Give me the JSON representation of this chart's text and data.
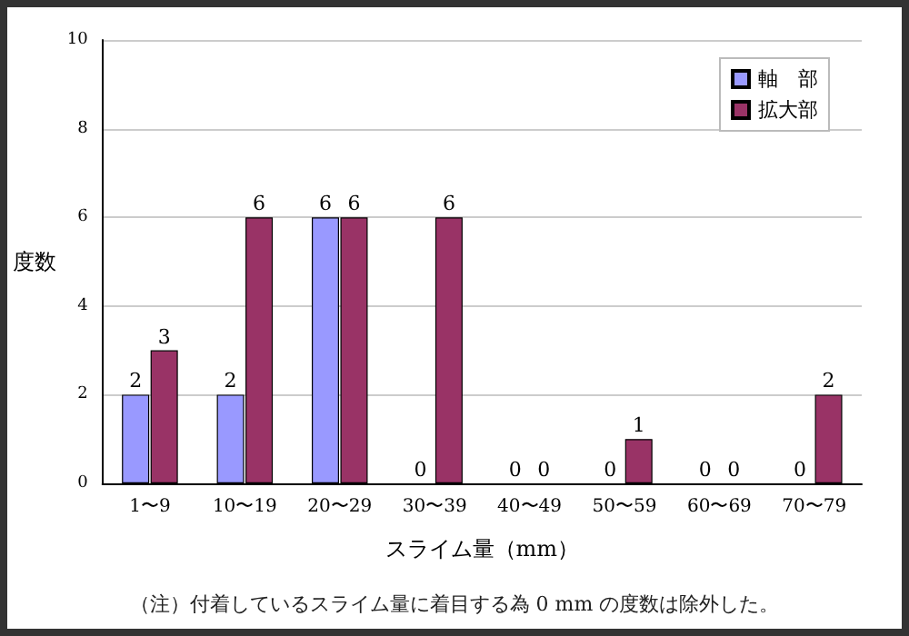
{
  "chart_data": {
    "type": "bar",
    "categories": [
      "1〜9",
      "10〜19",
      "20〜29",
      "30〜39",
      "40〜49",
      "50〜59",
      "60〜69",
      "70〜79"
    ],
    "series": [
      {
        "name": "軸　部",
        "color": "#9999ff",
        "values": [
          2,
          2,
          6,
          0,
          0,
          0,
          0,
          0
        ]
      },
      {
        "name": "拡大部",
        "color": "#993366",
        "values": [
          3,
          6,
          6,
          6,
          0,
          1,
          0,
          2
        ]
      }
    ],
    "xlabel": "スライム量（mm）",
    "ylabel": "度数",
    "annotations": [
      "（注）付着しているスライム量に着目する為 0 mm の度数は除外した。"
    ],
    "ylim": [
      0,
      10
    ],
    "yticks": [
      0,
      2,
      4,
      6,
      8,
      10
    ],
    "grid": "y",
    "legend": "top right",
    "data_labels": true
  }
}
